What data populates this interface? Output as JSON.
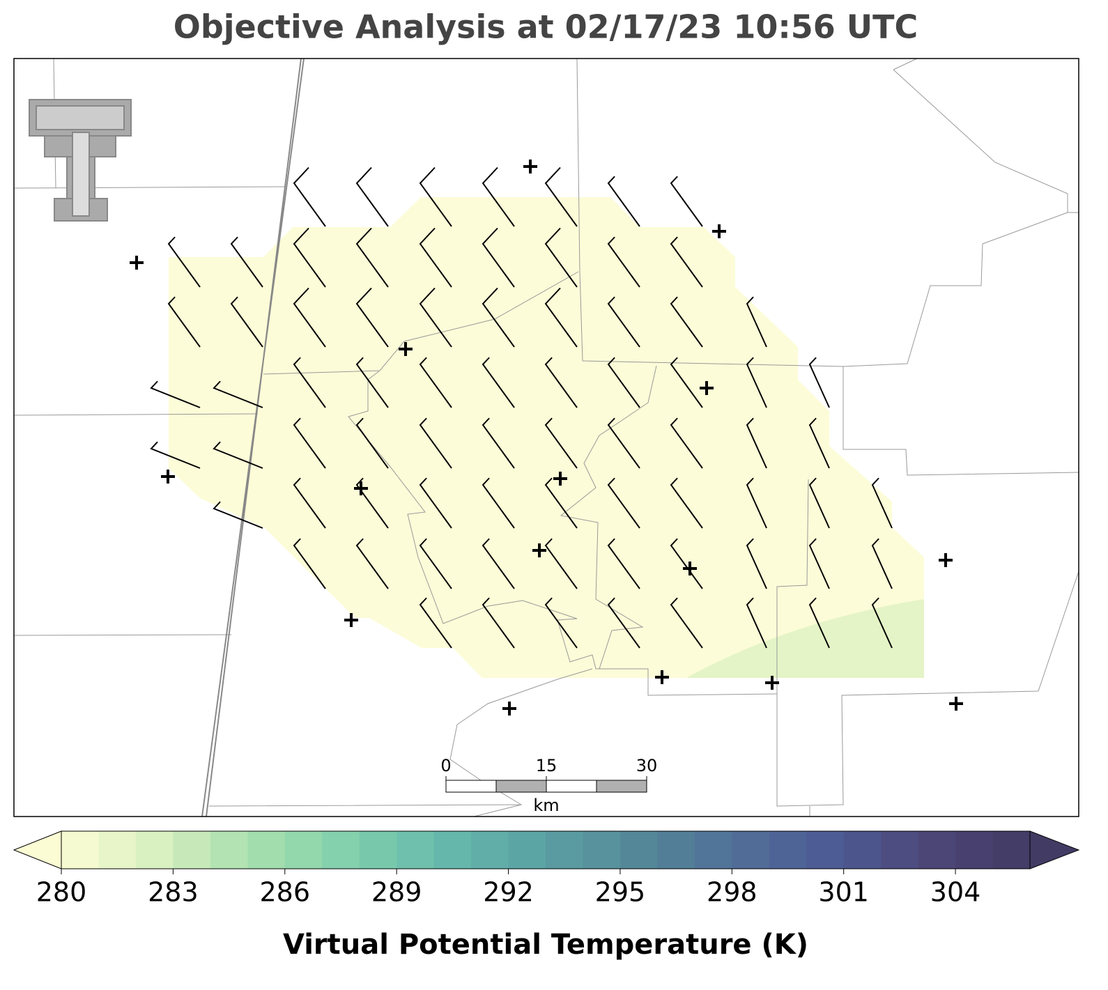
{
  "title": "Objective Analysis at 02/17/23 10:56 UTC",
  "colorbar": {
    "label": "Virtual Potential Temperature (K)",
    "lim": [
      280,
      306
    ],
    "ticks": [
      280,
      283,
      286,
      289,
      292,
      295,
      298,
      301,
      304
    ],
    "colors": [
      "#fcfcd4",
      "#d8efbf",
      "#a6dfad",
      "#7fcfad",
      "#66b8ab",
      "#5aa0a3",
      "#548799",
      "#506e97",
      "#4e5a95",
      "#4c4677",
      "#423b63"
    ]
  },
  "scalebar": {
    "ticks": [
      0,
      15,
      30
    ],
    "unit": "km"
  }
}
